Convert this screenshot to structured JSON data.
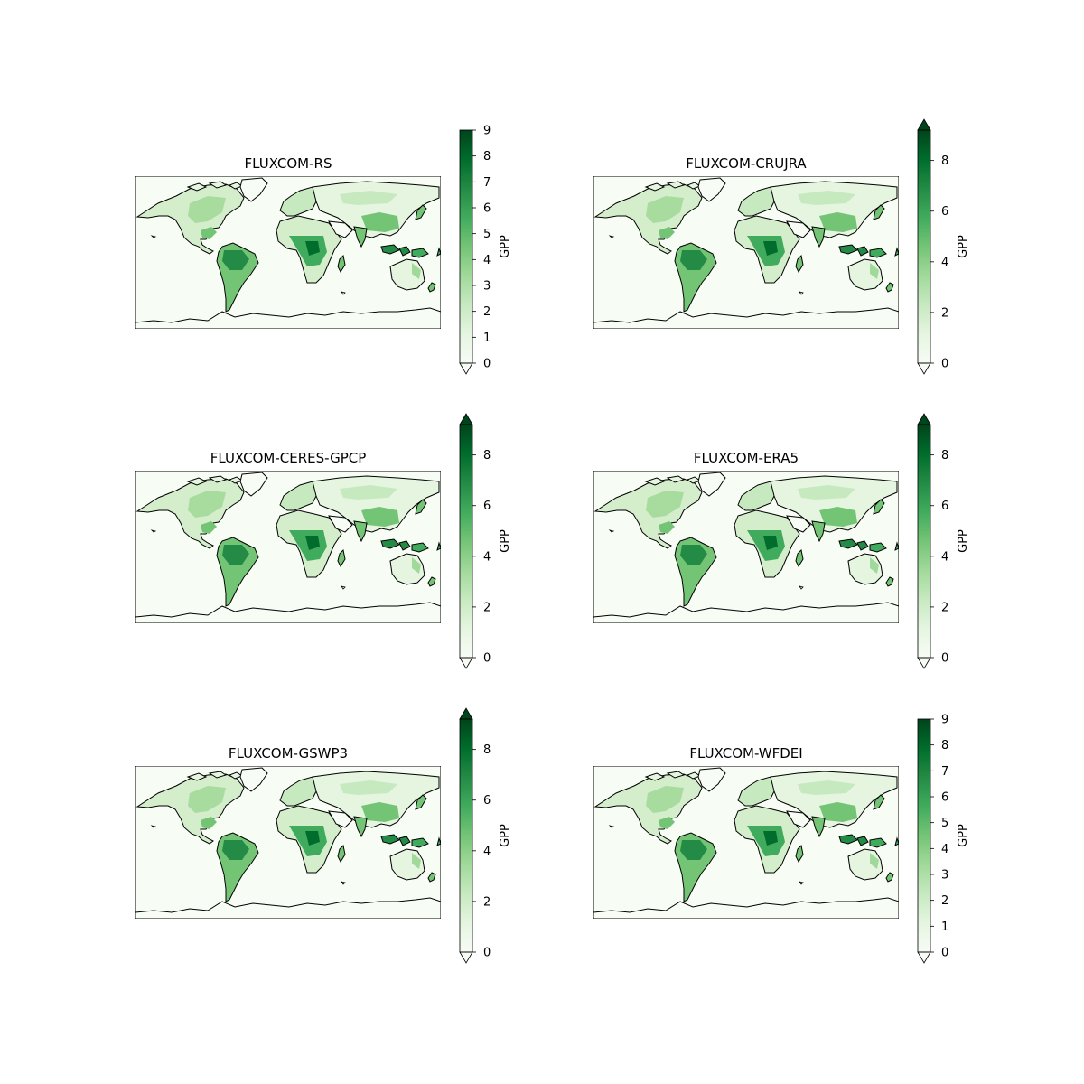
{
  "colorbar_label": "GPP",
  "colormap": [
    "#f7fcf5",
    "#e5f5e0",
    "#c7e9c0",
    "#a1d99b",
    "#74c476",
    "#41ab5d",
    "#238b45",
    "#006d2c",
    "#00441b"
  ],
  "coastline_color": "#000000",
  "panels": [
    {
      "title": "FLUXCOM-RS",
      "vmax": 9,
      "ticks": [
        "0",
        "1",
        "2",
        "3",
        "4",
        "5",
        "6",
        "7",
        "8",
        "9"
      ],
      "extend_max": false
    },
    {
      "title": "FLUXCOM-CRUJRA",
      "vmax": 9.2,
      "ticks": [
        "0",
        "2",
        "4",
        "6",
        "8"
      ],
      "extend_max": true
    },
    {
      "title": "FLUXCOM-CERES-GPCP",
      "vmax": 9.2,
      "ticks": [
        "0",
        "2",
        "4",
        "6",
        "8"
      ],
      "extend_max": true
    },
    {
      "title": "FLUXCOM-ERA5",
      "vmax": 9.2,
      "ticks": [
        "0",
        "2",
        "4",
        "6",
        "8"
      ],
      "extend_max": true
    },
    {
      "title": "FLUXCOM-GSWP3",
      "vmax": 9.2,
      "ticks": [
        "0",
        "2",
        "4",
        "6",
        "8"
      ],
      "extend_max": true
    },
    {
      "title": "FLUXCOM-WFDEI",
      "vmax": 9,
      "ticks": [
        "0",
        "1",
        "2",
        "3",
        "4",
        "5",
        "6",
        "7",
        "8",
        "9"
      ],
      "extend_max": false
    }
  ]
}
